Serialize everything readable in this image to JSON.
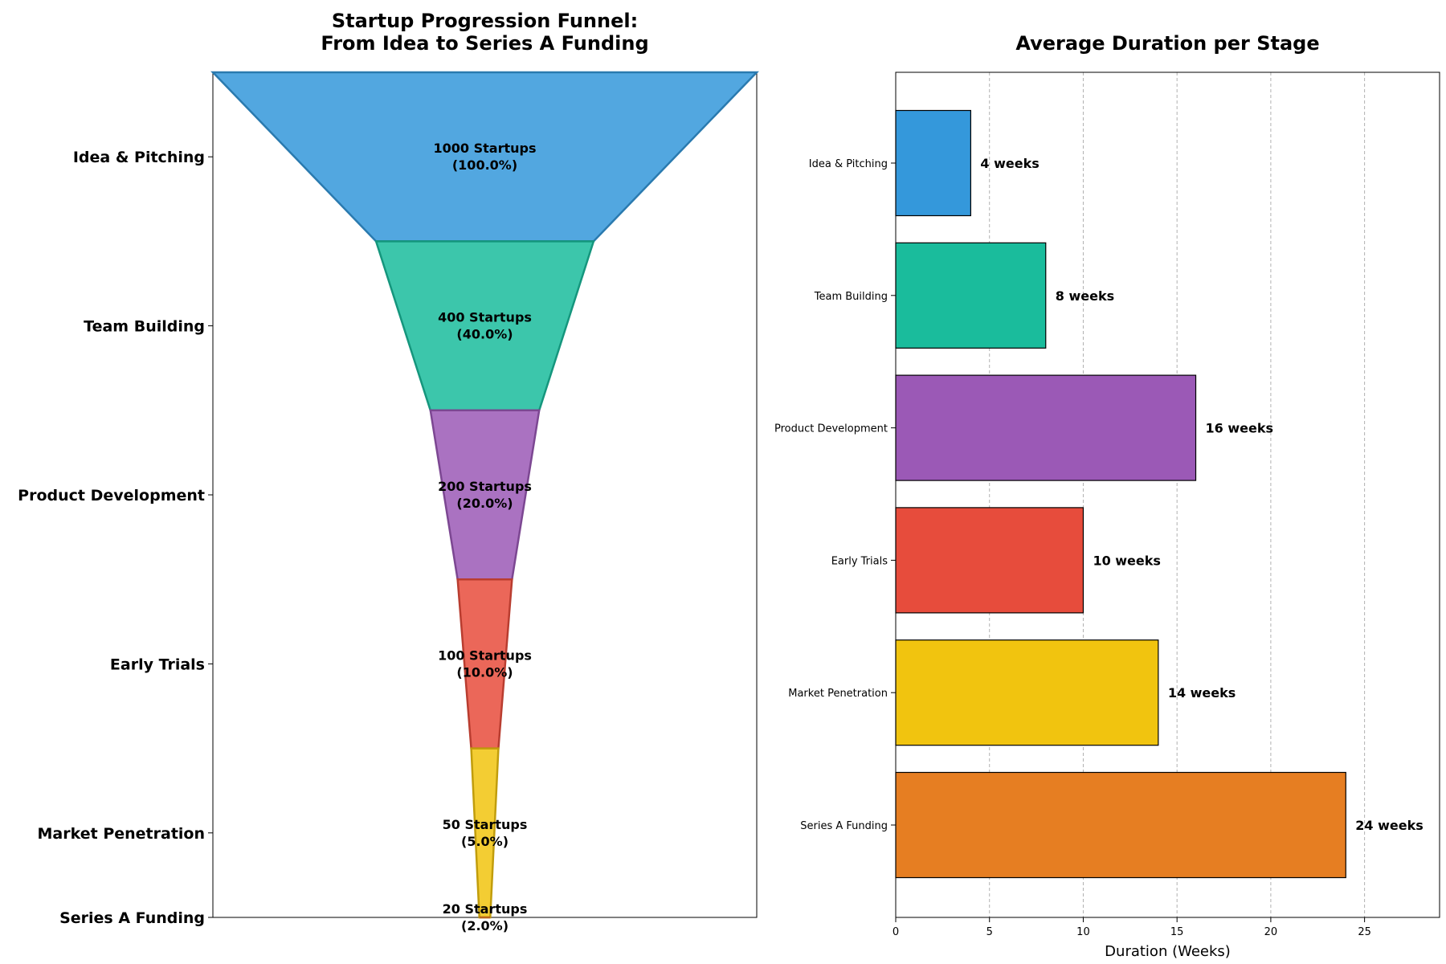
{
  "chart_data": [
    {
      "type": "funnel",
      "title_lines": [
        "Startup Progression Funnel:",
        "From Idea to Series A Funding"
      ],
      "categories": [
        "Idea & Pitching",
        "Team Building",
        "Product Development",
        "Early Trials",
        "Market Penetration",
        "Series A Funding"
      ],
      "values": [
        1000,
        400,
        200,
        100,
        50,
        20
      ],
      "value_labels": [
        "1000 Startups",
        "400 Startups",
        "200 Startups",
        "100 Startups",
        "50 Startups",
        "20 Startups"
      ],
      "percent_labels": [
        "(100.0%)",
        "(40.0%)",
        "(20.0%)",
        "(10.0%)",
        "(5.0%)",
        "(2.0%)"
      ],
      "colors": [
        "#3498db",
        "#1abc9c",
        "#9b59b6",
        "#e74c3c",
        "#f1c40f",
        "#e67e22"
      ]
    },
    {
      "type": "bar",
      "orientation": "horizontal",
      "title": "Average Duration per Stage",
      "categories": [
        "Idea & Pitching",
        "Team Building",
        "Product Development",
        "Early Trials",
        "Market Penetration",
        "Series A Funding"
      ],
      "values": [
        4,
        8,
        16,
        10,
        14,
        24
      ],
      "value_labels": [
        "4 weeks",
        "8 weeks",
        "16 weeks",
        "10 weeks",
        "14 weeks",
        "24 weeks"
      ],
      "colors": [
        "#3498db",
        "#1abc9c",
        "#9b59b6",
        "#e74c3c",
        "#f1c40f",
        "#e67e22"
      ],
      "xlabel": "Duration (Weeks)",
      "xlim": [
        0,
        29
      ],
      "xticks": [
        "0",
        "5",
        "10",
        "15",
        "20",
        "25"
      ],
      "grid": "x"
    }
  ]
}
